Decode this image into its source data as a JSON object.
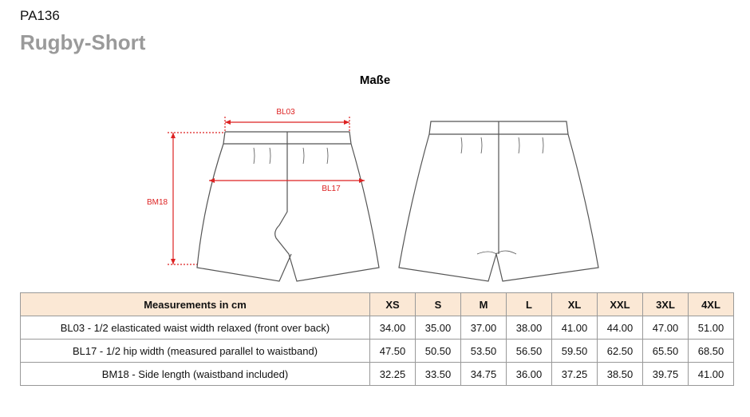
{
  "header": {
    "code": "PA136",
    "title": "Rugby-Short"
  },
  "diagram": {
    "title": "Maße",
    "labels": {
      "waist": "BL03",
      "hip": "BL17",
      "side": "BM18"
    }
  },
  "table": {
    "columns": [
      "Measurements in cm",
      "XS",
      "S",
      "M",
      "L",
      "XL",
      "XXL",
      "3XL",
      "4XL"
    ],
    "rows": [
      [
        "BL03 - 1/2 elasticated waist width relaxed (front over back)",
        "34.00",
        "35.00",
        "37.00",
        "38.00",
        "41.00",
        "44.00",
        "47.00",
        "51.00"
      ],
      [
        "BL17 - 1/2 hip width (measured parallel to waistband)",
        "47.50",
        "50.50",
        "53.50",
        "56.50",
        "59.50",
        "62.50",
        "65.50",
        "68.50"
      ],
      [
        "BM18 - Side length (waistband included)",
        "32.25",
        "33.50",
        "34.75",
        "36.00",
        "37.25",
        "38.50",
        "39.75",
        "41.00"
      ]
    ]
  }
}
